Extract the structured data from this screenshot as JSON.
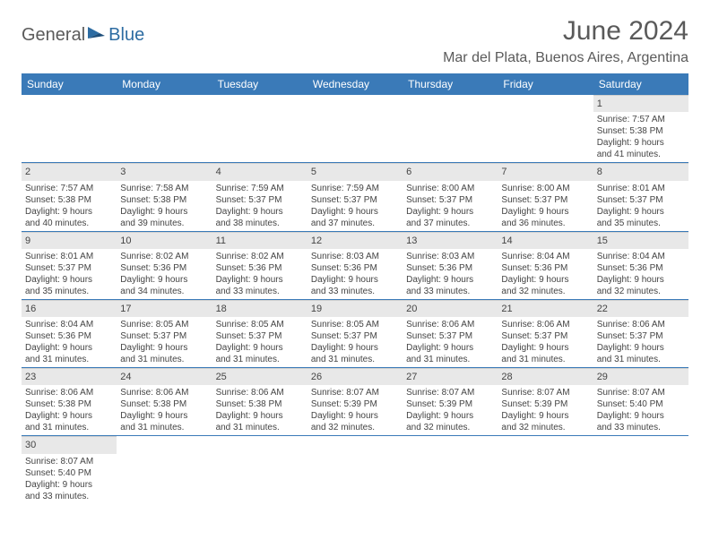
{
  "logo": {
    "part1": "General",
    "part2": "Blue"
  },
  "title": "June 2024",
  "location": "Mar del Plata, Buenos Aires, Argentina",
  "colors": {
    "header_bg": "#3a7ab8",
    "header_text": "#ffffff",
    "daynum_bg": "#e8e8e8",
    "row_border": "#3a7ab8",
    "text": "#444444",
    "logo_gray": "#5a5a5a",
    "logo_blue": "#2d6ca2"
  },
  "weekdays": [
    "Sunday",
    "Monday",
    "Tuesday",
    "Wednesday",
    "Thursday",
    "Friday",
    "Saturday"
  ],
  "days": {
    "1": {
      "sunrise": "Sunrise: 7:57 AM",
      "sunset": "Sunset: 5:38 PM",
      "day1": "Daylight: 9 hours",
      "day2": "and 41 minutes."
    },
    "2": {
      "sunrise": "Sunrise: 7:57 AM",
      "sunset": "Sunset: 5:38 PM",
      "day1": "Daylight: 9 hours",
      "day2": "and 40 minutes."
    },
    "3": {
      "sunrise": "Sunrise: 7:58 AM",
      "sunset": "Sunset: 5:38 PM",
      "day1": "Daylight: 9 hours",
      "day2": "and 39 minutes."
    },
    "4": {
      "sunrise": "Sunrise: 7:59 AM",
      "sunset": "Sunset: 5:37 PM",
      "day1": "Daylight: 9 hours",
      "day2": "and 38 minutes."
    },
    "5": {
      "sunrise": "Sunrise: 7:59 AM",
      "sunset": "Sunset: 5:37 PM",
      "day1": "Daylight: 9 hours",
      "day2": "and 37 minutes."
    },
    "6": {
      "sunrise": "Sunrise: 8:00 AM",
      "sunset": "Sunset: 5:37 PM",
      "day1": "Daylight: 9 hours",
      "day2": "and 37 minutes."
    },
    "7": {
      "sunrise": "Sunrise: 8:00 AM",
      "sunset": "Sunset: 5:37 PM",
      "day1": "Daylight: 9 hours",
      "day2": "and 36 minutes."
    },
    "8": {
      "sunrise": "Sunrise: 8:01 AM",
      "sunset": "Sunset: 5:37 PM",
      "day1": "Daylight: 9 hours",
      "day2": "and 35 minutes."
    },
    "9": {
      "sunrise": "Sunrise: 8:01 AM",
      "sunset": "Sunset: 5:37 PM",
      "day1": "Daylight: 9 hours",
      "day2": "and 35 minutes."
    },
    "10": {
      "sunrise": "Sunrise: 8:02 AM",
      "sunset": "Sunset: 5:36 PM",
      "day1": "Daylight: 9 hours",
      "day2": "and 34 minutes."
    },
    "11": {
      "sunrise": "Sunrise: 8:02 AM",
      "sunset": "Sunset: 5:36 PM",
      "day1": "Daylight: 9 hours",
      "day2": "and 33 minutes."
    },
    "12": {
      "sunrise": "Sunrise: 8:03 AM",
      "sunset": "Sunset: 5:36 PM",
      "day1": "Daylight: 9 hours",
      "day2": "and 33 minutes."
    },
    "13": {
      "sunrise": "Sunrise: 8:03 AM",
      "sunset": "Sunset: 5:36 PM",
      "day1": "Daylight: 9 hours",
      "day2": "and 33 minutes."
    },
    "14": {
      "sunrise": "Sunrise: 8:04 AM",
      "sunset": "Sunset: 5:36 PM",
      "day1": "Daylight: 9 hours",
      "day2": "and 32 minutes."
    },
    "15": {
      "sunrise": "Sunrise: 8:04 AM",
      "sunset": "Sunset: 5:36 PM",
      "day1": "Daylight: 9 hours",
      "day2": "and 32 minutes."
    },
    "16": {
      "sunrise": "Sunrise: 8:04 AM",
      "sunset": "Sunset: 5:36 PM",
      "day1": "Daylight: 9 hours",
      "day2": "and 31 minutes."
    },
    "17": {
      "sunrise": "Sunrise: 8:05 AM",
      "sunset": "Sunset: 5:37 PM",
      "day1": "Daylight: 9 hours",
      "day2": "and 31 minutes."
    },
    "18": {
      "sunrise": "Sunrise: 8:05 AM",
      "sunset": "Sunset: 5:37 PM",
      "day1": "Daylight: 9 hours",
      "day2": "and 31 minutes."
    },
    "19": {
      "sunrise": "Sunrise: 8:05 AM",
      "sunset": "Sunset: 5:37 PM",
      "day1": "Daylight: 9 hours",
      "day2": "and 31 minutes."
    },
    "20": {
      "sunrise": "Sunrise: 8:06 AM",
      "sunset": "Sunset: 5:37 PM",
      "day1": "Daylight: 9 hours",
      "day2": "and 31 minutes."
    },
    "21": {
      "sunrise": "Sunrise: 8:06 AM",
      "sunset": "Sunset: 5:37 PM",
      "day1": "Daylight: 9 hours",
      "day2": "and 31 minutes."
    },
    "22": {
      "sunrise": "Sunrise: 8:06 AM",
      "sunset": "Sunset: 5:37 PM",
      "day1": "Daylight: 9 hours",
      "day2": "and 31 minutes."
    },
    "23": {
      "sunrise": "Sunrise: 8:06 AM",
      "sunset": "Sunset: 5:38 PM",
      "day1": "Daylight: 9 hours",
      "day2": "and 31 minutes."
    },
    "24": {
      "sunrise": "Sunrise: 8:06 AM",
      "sunset": "Sunset: 5:38 PM",
      "day1": "Daylight: 9 hours",
      "day2": "and 31 minutes."
    },
    "25": {
      "sunrise": "Sunrise: 8:06 AM",
      "sunset": "Sunset: 5:38 PM",
      "day1": "Daylight: 9 hours",
      "day2": "and 31 minutes."
    },
    "26": {
      "sunrise": "Sunrise: 8:07 AM",
      "sunset": "Sunset: 5:39 PM",
      "day1": "Daylight: 9 hours",
      "day2": "and 32 minutes."
    },
    "27": {
      "sunrise": "Sunrise: 8:07 AM",
      "sunset": "Sunset: 5:39 PM",
      "day1": "Daylight: 9 hours",
      "day2": "and 32 minutes."
    },
    "28": {
      "sunrise": "Sunrise: 8:07 AM",
      "sunset": "Sunset: 5:39 PM",
      "day1": "Daylight: 9 hours",
      "day2": "and 32 minutes."
    },
    "29": {
      "sunrise": "Sunrise: 8:07 AM",
      "sunset": "Sunset: 5:40 PM",
      "day1": "Daylight: 9 hours",
      "day2": "and 33 minutes."
    },
    "30": {
      "sunrise": "Sunrise: 8:07 AM",
      "sunset": "Sunset: 5:40 PM",
      "day1": "Daylight: 9 hours",
      "day2": "and 33 minutes."
    }
  },
  "grid": [
    [
      null,
      null,
      null,
      null,
      null,
      null,
      "1"
    ],
    [
      "2",
      "3",
      "4",
      "5",
      "6",
      "7",
      "8"
    ],
    [
      "9",
      "10",
      "11",
      "12",
      "13",
      "14",
      "15"
    ],
    [
      "16",
      "17",
      "18",
      "19",
      "20",
      "21",
      "22"
    ],
    [
      "23",
      "24",
      "25",
      "26",
      "27",
      "28",
      "29"
    ],
    [
      "30",
      null,
      null,
      null,
      null,
      null,
      null
    ]
  ]
}
